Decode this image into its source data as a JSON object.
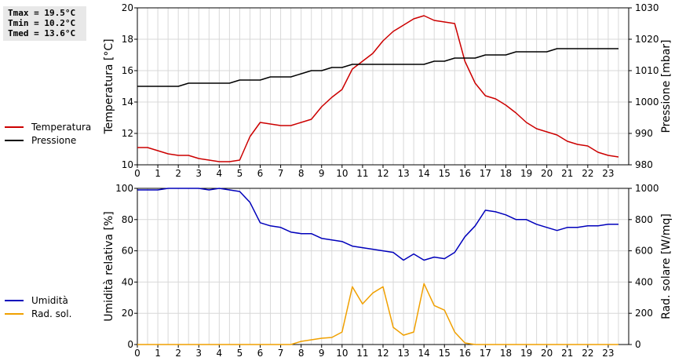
{
  "stats": {
    "tmax": "Tmax = 19.5°C",
    "tmin": "Tmin = 10.2°C",
    "tmed": "Tmed = 13.6°C"
  },
  "colors": {
    "temperature": "#cc0000",
    "pressure": "#000000",
    "humidity": "#0000bb",
    "solar": "#f0a000",
    "grid": "#d8d8d8"
  },
  "chart_data": [
    {
      "type": "line",
      "ylabel": "Temperatura [°C]",
      "y2label": "Pressione [mbar]",
      "xlim": [
        0,
        24
      ],
      "ylim": [
        10,
        20
      ],
      "y2lim": [
        980,
        1030
      ],
      "xticks": [
        "0",
        "1",
        "2",
        "3",
        "4",
        "5",
        "6",
        "7",
        "8",
        "9",
        "10",
        "11",
        "12",
        "13",
        "14",
        "15",
        "16",
        "17",
        "18",
        "19",
        "20",
        "21",
        "22",
        "23"
      ],
      "yticks": [
        "10",
        "12",
        "14",
        "16",
        "18",
        "20"
      ],
      "y2ticks": [
        "980",
        "990",
        "1000",
        "1010",
        "1020",
        "1030"
      ],
      "grid": true,
      "legend_position": "left",
      "series": [
        {
          "name": "Temperatura",
          "axis": "left",
          "x": [
            0,
            0.5,
            1,
            1.5,
            2,
            2.5,
            3,
            3.5,
            4,
            4.5,
            5,
            5.5,
            6,
            6.5,
            7,
            7.5,
            8,
            8.5,
            9,
            9.5,
            10,
            10.5,
            11,
            11.5,
            12,
            12.5,
            13,
            13.5,
            14,
            14.5,
            15,
            15.5,
            16,
            16.5,
            17,
            17.5,
            18,
            18.5,
            19,
            19.5,
            20,
            20.5,
            21,
            21.5,
            22,
            22.5,
            23,
            23.5
          ],
          "y": [
            11.1,
            11.1,
            10.9,
            10.7,
            10.6,
            10.6,
            10.4,
            10.3,
            10.2,
            10.2,
            10.3,
            11.8,
            12.7,
            12.6,
            12.5,
            12.5,
            12.7,
            12.9,
            13.7,
            14.3,
            14.8,
            16.1,
            16.6,
            17.1,
            17.9,
            18.5,
            18.9,
            19.3,
            19.5,
            19.2,
            19.1,
            19.0,
            16.6,
            15.2,
            14.4,
            14.2,
            13.8,
            13.3,
            12.7,
            12.3,
            12.1,
            11.9,
            11.5,
            11.3,
            11.2,
            10.8,
            10.6,
            10.5
          ]
        },
        {
          "name": "Pressione",
          "axis": "right",
          "x": [
            0,
            2,
            2.5,
            3,
            4,
            4.5,
            5,
            6,
            6.5,
            7,
            7.5,
            8,
            8.5,
            9,
            9.5,
            10,
            10.5,
            11,
            12,
            13,
            14,
            14.5,
            15,
            15.5,
            16,
            16.5,
            17,
            18,
            18.5,
            19,
            20,
            20.5,
            21,
            22,
            23,
            23.5
          ],
          "y": [
            1005,
            1005,
            1006,
            1006,
            1006,
            1006,
            1007,
            1007,
            1008,
            1008,
            1008,
            1009,
            1010,
            1010,
            1011,
            1011,
            1012,
            1012,
            1012,
            1012,
            1012,
            1013,
            1013,
            1014,
            1014,
            1014,
            1015,
            1015,
            1016,
            1016,
            1016,
            1017,
            1017,
            1017,
            1017,
            1017
          ]
        }
      ]
    },
    {
      "type": "line",
      "ylabel": "Umidità relativa [%]",
      "y2label": "Rad. solare [W/mq]",
      "xlim": [
        0,
        24
      ],
      "ylim": [
        0,
        100
      ],
      "y2lim": [
        0,
        1000
      ],
      "xticks": [
        "0",
        "1",
        "2",
        "3",
        "4",
        "5",
        "6",
        "7",
        "8",
        "9",
        "10",
        "11",
        "12",
        "13",
        "14",
        "15",
        "16",
        "17",
        "18",
        "19",
        "20",
        "21",
        "22",
        "23"
      ],
      "yticks": [
        "0",
        "20",
        "40",
        "60",
        "80",
        "100"
      ],
      "y2ticks": [
        "0",
        "200",
        "400",
        "600",
        "800",
        "1000"
      ],
      "grid": true,
      "legend_position": "left",
      "series": [
        {
          "name": "Umidità",
          "axis": "left",
          "x": [
            0,
            0.5,
            1,
            1.5,
            2,
            2.5,
            3,
            3.5,
            4,
            4.5,
            5,
            5.5,
            6,
            6.5,
            7,
            7.5,
            8,
            8.5,
            9,
            9.5,
            10,
            10.5,
            11,
            11.5,
            12,
            12.5,
            13,
            13.5,
            14,
            14.5,
            15,
            15.5,
            16,
            16.5,
            17,
            17.5,
            18,
            18.5,
            19,
            19.5,
            20,
            20.5,
            21,
            21.5,
            22,
            22.5,
            23,
            23.5
          ],
          "y": [
            99,
            99,
            99,
            100,
            100,
            100,
            100,
            99,
            100,
            99,
            98,
            91,
            78,
            76,
            75,
            72,
            71,
            71,
            68,
            67,
            66,
            63,
            62,
            61,
            60,
            59,
            54,
            58,
            54,
            56,
            55,
            59,
            69,
            76,
            86,
            85,
            83,
            80,
            80,
            77,
            75,
            73,
            75,
            75,
            76,
            76,
            77,
            77
          ]
        },
        {
          "name": "Rad. sol.",
          "axis": "right",
          "x": [
            0,
            7,
            7.5,
            8,
            8.5,
            9,
            9.5,
            10,
            10.5,
            11,
            11.5,
            12,
            12.5,
            13,
            13.5,
            14,
            14.5,
            15,
            15.5,
            16,
            16.5,
            23.5
          ],
          "y": [
            0,
            0,
            0,
            20,
            30,
            40,
            45,
            80,
            370,
            260,
            330,
            370,
            110,
            60,
            80,
            390,
            250,
            220,
            80,
            10,
            0,
            0
          ]
        }
      ]
    }
  ]
}
